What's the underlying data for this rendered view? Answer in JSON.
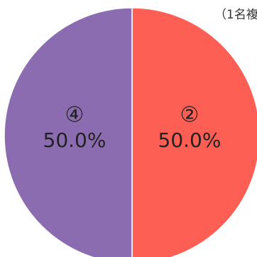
{
  "chart_data": {
    "type": "pie",
    "categories": [
      "②",
      "④"
    ],
    "values": [
      50.0,
      50.0
    ],
    "value_labels": [
      "50.0%",
      "50.0%"
    ],
    "colors": [
      "#fe5f55",
      "#8c6cb0"
    ],
    "legend": "none",
    "title": ""
  },
  "note": "（1名複"
}
